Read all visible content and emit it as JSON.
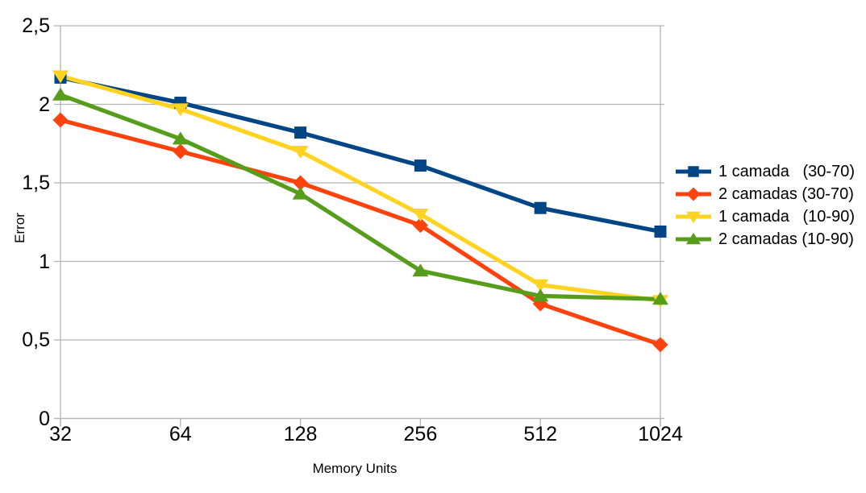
{
  "chart_data": {
    "type": "line",
    "title": "",
    "xlabel": "Memory Units",
    "ylabel": "Error",
    "x_categories": [
      "32",
      "64",
      "128",
      "256",
      "512",
      "1024"
    ],
    "ylim": [
      0,
      2.5
    ],
    "yticks": [
      0,
      0.5,
      1,
      1.5,
      2,
      2.5
    ],
    "ytick_labels": [
      "0",
      "0,5",
      "1",
      "1,5",
      "2",
      "2,5"
    ],
    "grid": "horizontal",
    "legend_position": "right",
    "series": [
      {
        "name": "1 camada   (30-70)",
        "color": "#004586",
        "marker": "square",
        "values": [
          2.17,
          2.01,
          1.82,
          1.61,
          1.34,
          1.19
        ]
      },
      {
        "name": "2 camadas (30-70)",
        "color": "#ff420e",
        "marker": "diamond",
        "values": [
          1.9,
          1.7,
          1.5,
          1.23,
          0.73,
          0.47
        ]
      },
      {
        "name": "1 camada   (10-90)",
        "color": "#ffd320",
        "marker": "triangle-down",
        "values": [
          2.18,
          1.97,
          1.7,
          1.3,
          0.85,
          0.75
        ]
      },
      {
        "name": "2 camadas (10-90)",
        "color": "#579d1c",
        "marker": "triangle-up",
        "values": [
          2.06,
          1.78,
          1.43,
          0.94,
          0.78,
          0.76
        ]
      }
    ]
  },
  "colors": {
    "background": "#ffffff",
    "grid": "#b3b3b3",
    "axis": "#b3b3b3",
    "text": "#000000"
  }
}
